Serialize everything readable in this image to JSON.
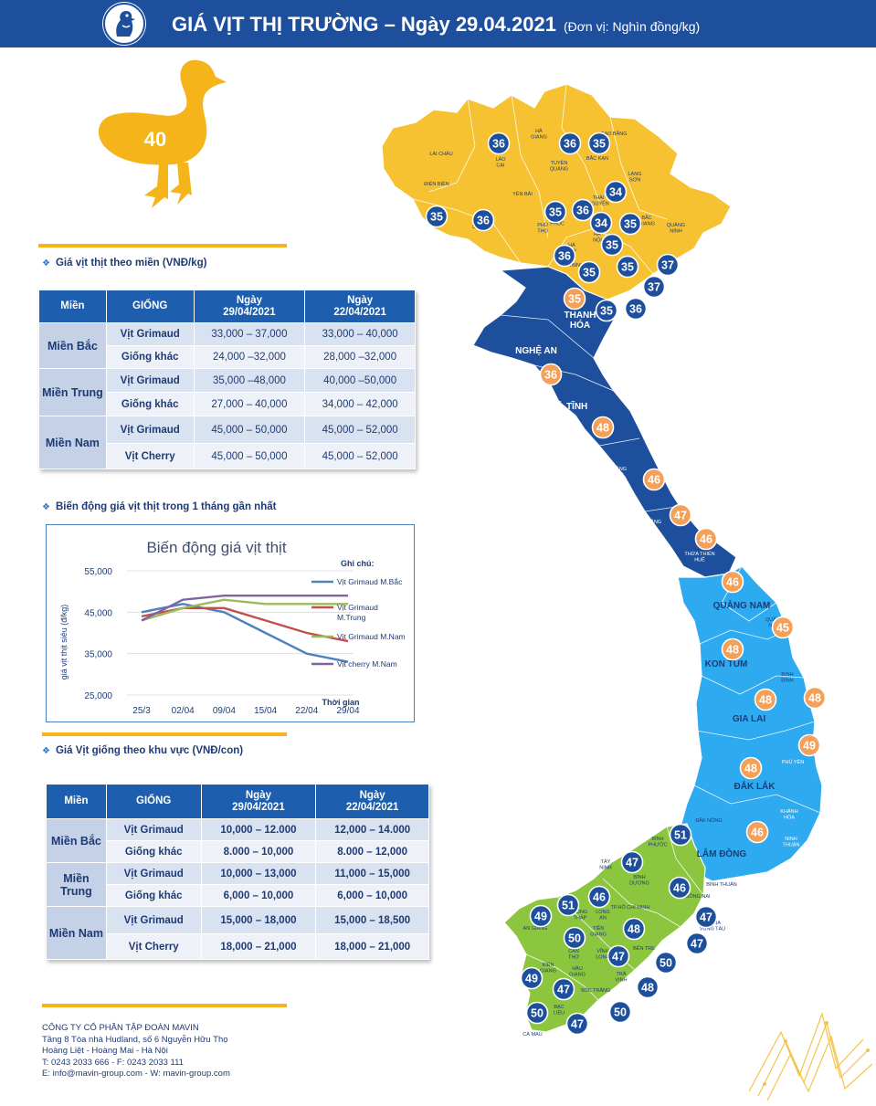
{
  "header": {
    "title": "GIÁ VỊT THỊ TRƯỜNG – Ngày 29.04.2021",
    "unit": "(Đơn vị: Nghìn đồng/kg)"
  },
  "duck_badge": {
    "value": "40"
  },
  "section1": {
    "title": "Giá vịt thịt theo miền (VNĐ/kg)",
    "headers": [
      "Miền",
      "GIỐNG",
      "Ngày\n29/04/2021",
      "Ngày\n22/04/2021"
    ],
    "regions": [
      {
        "name": "Miền Bắc",
        "rows": [
          {
            "breed": "Vịt Grimaud",
            "current": "33,000 – 37,000",
            "previous": "33,000 – 40,000"
          },
          {
            "breed": "Giống khác",
            "current": "24,000 –32,000",
            "previous": "28,000 –32,000"
          }
        ]
      },
      {
        "name": "Miền Trung",
        "rows": [
          {
            "breed": "Vịt Grimaud",
            "current": "35,000 –48,000",
            "previous": "40,000 –50,000"
          },
          {
            "breed": "Giống khác",
            "current": "27,000 – 40,000",
            "previous": "34,000 – 42,000"
          }
        ]
      },
      {
        "name": "Miền Nam",
        "rows": [
          {
            "breed": "Vịt Grimaud",
            "current": "45,000 – 50,000",
            "previous": "45,000 – 52,000"
          },
          {
            "breed": "Vịt Cherry",
            "current": "45,000 – 50,000",
            "previous": "45,000 – 52,000"
          }
        ]
      }
    ]
  },
  "section2": {
    "title": "Biến động giá vịt thịt trong 1 tháng gần nhất"
  },
  "chart_data": {
    "type": "line",
    "title": "Biến động giá vịt thịt",
    "xlabel": "Thời gian",
    "ylabel": "giá vịt thịt siêu (đ/kg)",
    "legend_title": "Ghi chú:",
    "legend_position": "right",
    "categories": [
      "25/3",
      "02/04",
      "09/04",
      "15/04",
      "22/04",
      "29/04"
    ],
    "yticks": [
      "55,000",
      "45,000",
      "35,000",
      "25,000"
    ],
    "ylim": [
      25000,
      55000
    ],
    "grid": true,
    "series": [
      {
        "name": "Vịt Grimaud M.Bắc",
        "color": "#4f81bd",
        "values": [
          45000,
          47000,
          45000,
          40000,
          35000,
          33000
        ]
      },
      {
        "name": "Vịt Grimaud M.Trung",
        "color": "#c0504d",
        "values": [
          44000,
          46000,
          46000,
          43000,
          40000,
          38000
        ]
      },
      {
        "name": "Vịt Grimaud M.Nam",
        "color": "#9bbb59",
        "values": [
          43000,
          46000,
          48000,
          47000,
          47000,
          47000
        ]
      },
      {
        "name": "Vịt cherry M.Nam",
        "color": "#8064a2",
        "values": [
          43000,
          48000,
          49000,
          49000,
          49000,
          49000
        ]
      }
    ]
  },
  "section3": {
    "title": "Giá Vịt giống theo khu vực (VNĐ/con)",
    "headers": [
      "Miền",
      "GIỐNG",
      "Ngày\n29/04/2021",
      "Ngày\n22/04/2021"
    ],
    "regions": [
      {
        "name": "Miền Bắc",
        "rows": [
          {
            "breed": "Vịt Grimaud",
            "current": "10,000 – 12.000",
            "previous": "12,000 – 14.000"
          },
          {
            "breed": "Giống khác",
            "current": "8.000 – 10,000",
            "previous": "8.000 – 12,000"
          }
        ]
      },
      {
        "name": "Miền Trung",
        "rows": [
          {
            "breed": "Vịt Grimaud",
            "current": "10,000 – 13,000",
            "previous": "11,000 – 15,000"
          },
          {
            "breed": "Giống khác",
            "current": "6,000 – 10,000",
            "previous": "6,000 – 10,000"
          }
        ]
      },
      {
        "name": "Miền Nam",
        "rows": [
          {
            "breed": "Vịt Grimaud",
            "current": "15,000 – 18,000",
            "previous": "15,000 – 18,500"
          },
          {
            "breed": "Vịt Cherry",
            "current": "18,000 – 21,000",
            "previous": "18,000 – 21,000"
          }
        ]
      }
    ]
  },
  "footer": {
    "company": "CÔNG TY CỔ PHẦN TẬP ĐOÀN MAVIN",
    "address1": "Tầng 8 Tòa nhà Hudland, số 6 Nguyễn Hữu Thọ",
    "address2": "Hoàng Liệt - Hoàng Mai - Hà Nội",
    "phone": "T: 0243 2033 666 - F: 0243 2033 111",
    "web": "E: info@mavin-group.com -  W: mavin-group.com"
  },
  "map": {
    "colors": {
      "north": "#f6c231",
      "central_north": "#1d4f9c",
      "central_south": "#2eaaf0",
      "south": "#8cc63f",
      "badge_blue": "#1d4f9c",
      "badge_orange": "#f4a059"
    },
    "province_labels": [
      {
        "text": "LAI CHÂU",
        "color": "dark"
      },
      {
        "text": "LÀO\nCAI",
        "color": "dark"
      },
      {
        "text": "HÀ\nGIANG",
        "color": "dark"
      },
      {
        "text": "CAO BẰNG",
        "color": "dark"
      },
      {
        "text": "TUYÊN\nQUANG",
        "color": "dark"
      },
      {
        "text": "BẮC KẠN",
        "color": "dark"
      },
      {
        "text": "LẠNG\nSƠN",
        "color": "dark"
      },
      {
        "text": "ĐIỆN BIÊN",
        "color": "dark"
      },
      {
        "text": "YÊN BÁI",
        "color": "dark"
      },
      {
        "text": "THÁI\nNGUYÊN",
        "color": "dark"
      },
      {
        "text": "SƠN LA",
        "color": "dark"
      },
      {
        "text": "QUẢNG\nNINH",
        "color": "dark"
      },
      {
        "text": "PHÚ\nTHỌ",
        "color": "dark"
      },
      {
        "text": "VĨNH\nPHÚC",
        "color": "dark"
      },
      {
        "text": "HÀ\nNỘI",
        "color": "dark"
      },
      {
        "text": "BẮC\nGIANG",
        "color": "dark"
      },
      {
        "text": "HÀ\nTÂY",
        "color": "dark"
      },
      {
        "text": "HÒA BÌNH",
        "color": "dark"
      },
      {
        "text": "THANH\nHÓA",
        "color": "light"
      },
      {
        "text": "NGHỆ AN",
        "color": "light"
      },
      {
        "text": "HÀ TĨNH",
        "color": "light"
      },
      {
        "text": "QUẢNG\nBÌNH",
        "color": "light"
      },
      {
        "text": "QUẢNG\nTRỊ",
        "color": "light"
      },
      {
        "text": "THỪA THIÊN\nHUẾ",
        "color": "light"
      },
      {
        "text": "QUẢNG NAM",
        "color": "dark"
      },
      {
        "text": "QUẢNG\nNGÃI",
        "color": "dark"
      },
      {
        "text": "KON TUM",
        "color": "dark"
      },
      {
        "text": "BÌNH\nĐỊNH",
        "color": "dark"
      },
      {
        "text": "GIA LAI",
        "color": "dark"
      },
      {
        "text": "PHÚ YÊN",
        "color": "light"
      },
      {
        "text": "ĐẮK LẮK",
        "color": "dark"
      },
      {
        "text": "KHÁNH\nHÒA",
        "color": "light"
      },
      {
        "text": "ĐẮK NÔNG",
        "color": "dark"
      },
      {
        "text": "NINH\nTHUẬN",
        "color": "light"
      },
      {
        "text": "LÂM ĐỒNG",
        "color": "dark"
      },
      {
        "text": "BÌNH THUẬN",
        "color": "dark"
      },
      {
        "text": "BÌNH\nPHƯỚC",
        "color": "dark"
      },
      {
        "text": "TÂY\nNINH",
        "color": "dark"
      },
      {
        "text": "BÌNH\nDƯƠNG",
        "color": "dark"
      },
      {
        "text": "ĐỒNG NAI",
        "color": "dark"
      },
      {
        "text": "TP.HỒ CHÍ MINH",
        "color": "dark"
      },
      {
        "text": "BÀ RỊA\nVŨNG TÀU",
        "color": "dark"
      },
      {
        "text": "ĐỒNG\nTHÁP",
        "color": "dark"
      },
      {
        "text": "LONG\nAN",
        "color": "dark"
      },
      {
        "text": "AN GIANG",
        "color": "dark"
      },
      {
        "text": "TIỀN\nGIANG",
        "color": "dark"
      },
      {
        "text": "CẦN\nTHƠ",
        "color": "dark"
      },
      {
        "text": "VĨNH\nLONG",
        "color": "dark"
      },
      {
        "text": "BẾN TRE",
        "color": "dark"
      },
      {
        "text": "KIÊN\nGIANG",
        "color": "dark"
      },
      {
        "text": "HẬU\nGIANG",
        "color": "dark"
      },
      {
        "text": "TRÀ\nVINH",
        "color": "dark"
      },
      {
        "text": "SÓC TRĂNG",
        "color": "dark"
      },
      {
        "text": "BẠC\nLIÊU",
        "color": "dark"
      },
      {
        "text": "CÀ MAU",
        "color": "dark"
      }
    ],
    "price_badges": [
      {
        "value": "36",
        "style": "blue"
      },
      {
        "value": "36",
        "style": "blue"
      },
      {
        "value": "35",
        "style": "blue"
      },
      {
        "value": "34",
        "style": "blue"
      },
      {
        "value": "35",
        "style": "blue"
      },
      {
        "value": "36",
        "style": "blue"
      },
      {
        "value": "35",
        "style": "blue"
      },
      {
        "value": "36",
        "style": "blue"
      },
      {
        "value": "34",
        "style": "blue"
      },
      {
        "value": "35",
        "style": "blue"
      },
      {
        "value": "35",
        "style": "blue"
      },
      {
        "value": "36",
        "style": "blue"
      },
      {
        "value": "35",
        "style": "blue"
      },
      {
        "value": "35",
        "style": "blue"
      },
      {
        "value": "37",
        "style": "blue"
      },
      {
        "value": "37",
        "style": "blue"
      },
      {
        "value": "35",
        "style": "orange"
      },
      {
        "value": "35",
        "style": "blue"
      },
      {
        "value": "36",
        "style": "blue"
      },
      {
        "value": "36",
        "style": "orange"
      },
      {
        "value": "48",
        "style": "orange"
      },
      {
        "value": "46",
        "style": "orange"
      },
      {
        "value": "47",
        "style": "orange"
      },
      {
        "value": "46",
        "style": "orange"
      },
      {
        "value": "46",
        "style": "orange"
      },
      {
        "value": "45",
        "style": "orange"
      },
      {
        "value": "48",
        "style": "orange"
      },
      {
        "value": "48",
        "style": "orange"
      },
      {
        "value": "48",
        "style": "orange"
      },
      {
        "value": "49",
        "style": "orange"
      },
      {
        "value": "48",
        "style": "orange"
      },
      {
        "value": "46",
        "style": "orange"
      },
      {
        "value": "51",
        "style": "blue"
      },
      {
        "value": "47",
        "style": "blue"
      },
      {
        "value": "46",
        "style": "blue"
      },
      {
        "value": "46",
        "style": "blue"
      },
      {
        "value": "51",
        "style": "blue"
      },
      {
        "value": "49",
        "style": "blue"
      },
      {
        "value": "50",
        "style": "blue"
      },
      {
        "value": "48",
        "style": "blue"
      },
      {
        "value": "47",
        "style": "blue"
      },
      {
        "value": "47",
        "style": "blue"
      },
      {
        "value": "47",
        "style": "blue"
      },
      {
        "value": "50",
        "style": "blue"
      },
      {
        "value": "49",
        "style": "blue"
      },
      {
        "value": "47",
        "style": "blue"
      },
      {
        "value": "48",
        "style": "blue"
      },
      {
        "value": "50",
        "style": "blue"
      },
      {
        "value": "50",
        "style": "blue"
      },
      {
        "value": "47",
        "style": "blue"
      }
    ]
  }
}
